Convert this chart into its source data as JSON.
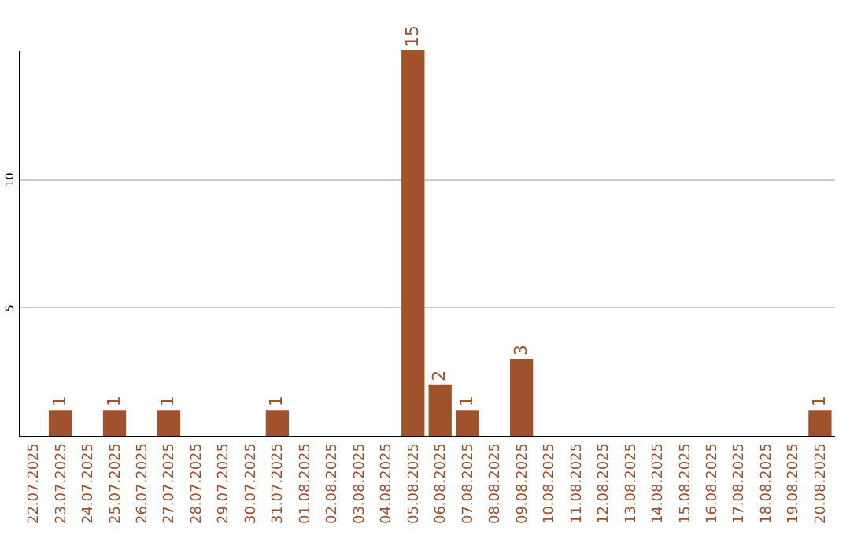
{
  "chart_data": {
    "type": "bar",
    "categories": [
      "22.07.2025",
      "23.07.2025",
      "24.07.2025",
      "25.07.2025",
      "26.07.2025",
      "27.07.2025",
      "28.07.2025",
      "29.07.2025",
      "30.07.2025",
      "31.07.2025",
      "01.08.2025",
      "02.08.2025",
      "03.08.2025",
      "04.08.2025",
      "05.08.2025",
      "06.08.2025",
      "07.08.2025",
      "08.08.2025",
      "09.08.2025",
      "10.08.2025",
      "11.08.2025",
      "12.08.2025",
      "13.08.2025",
      "14.08.2025",
      "15.08.2025",
      "16.08.2025",
      "17.08.2025",
      "18.08.2025",
      "19.08.2025",
      "20.08.2025"
    ],
    "values": [
      0,
      1,
      0,
      1,
      0,
      1,
      0,
      0,
      0,
      1,
      0,
      0,
      0,
      0,
      15,
      2,
      1,
      0,
      3,
      0,
      0,
      0,
      0,
      0,
      0,
      0,
      0,
      0,
      0,
      1
    ],
    "value_labels": [
      null,
      "1",
      null,
      "1",
      null,
      "1",
      null,
      null,
      null,
      "1",
      null,
      null,
      null,
      null,
      "15",
      "2",
      "1",
      null,
      "3",
      null,
      null,
      null,
      null,
      null,
      null,
      null,
      null,
      null,
      null,
      "1"
    ],
    "color": "#a0522d",
    "ylim": [
      0,
      15
    ],
    "yticks": [
      5,
      10
    ],
    "grid": "y"
  }
}
